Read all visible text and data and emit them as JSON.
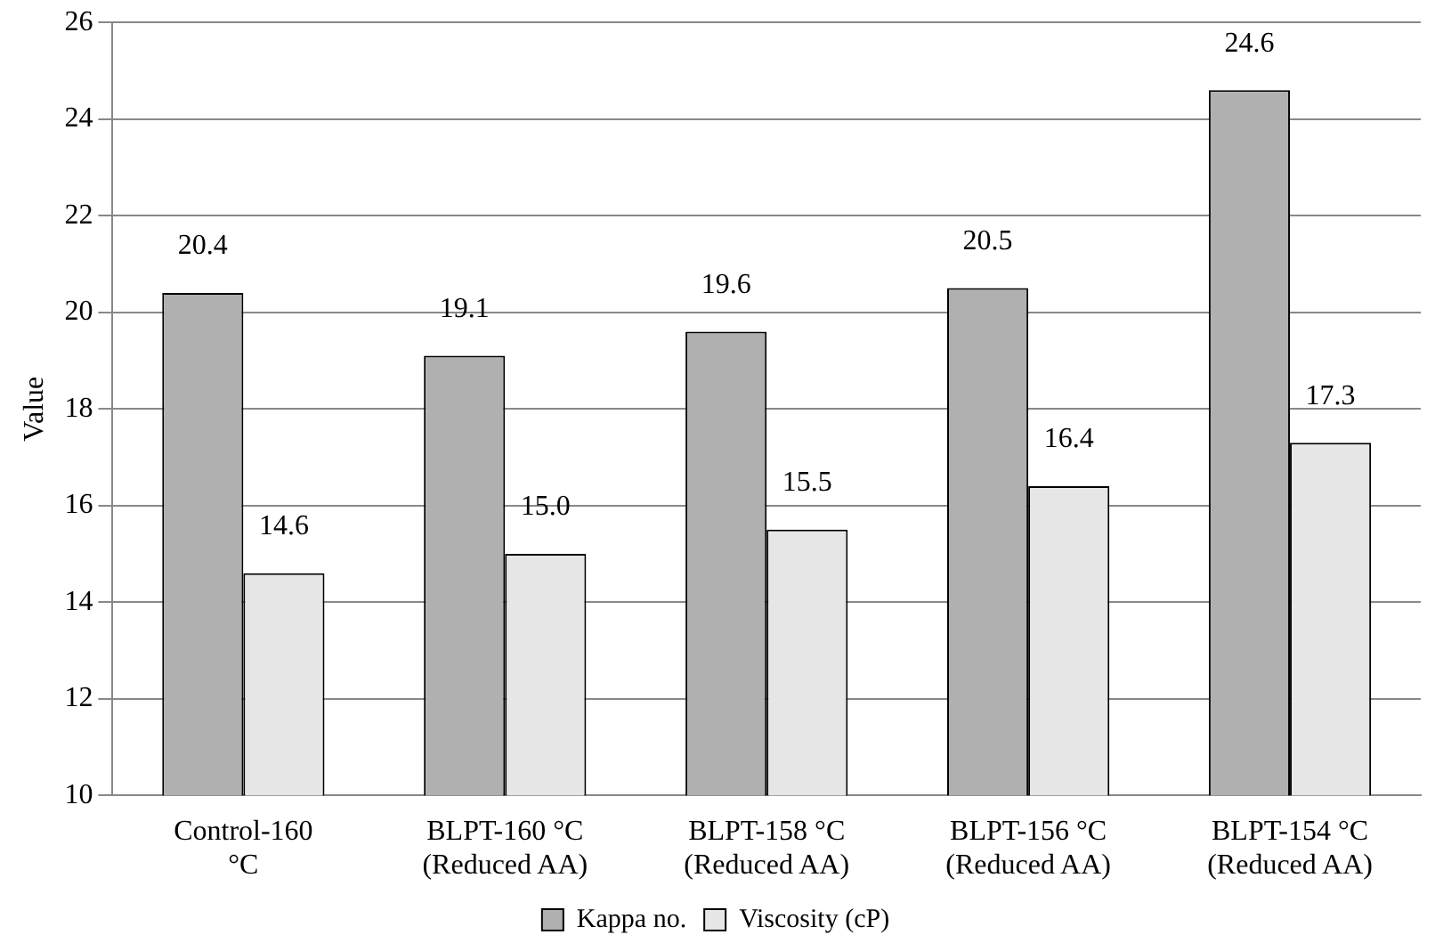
{
  "chart_data": {
    "type": "bar",
    "ylabel": "Value",
    "categories": [
      "Control-160 °C",
      "BLPT-160 °C (Reduced AA)",
      "BLPT-158 °C (Reduced AA)",
      "BLPT-156 °C (Reduced AA)",
      "BLPT-154 °C (Reduced AA)"
    ],
    "series": [
      {
        "name": "Kappa no.",
        "color": "#b0b0b0",
        "values": [
          20.4,
          19.1,
          19.6,
          20.5,
          24.6
        ]
      },
      {
        "name": "Viscosity (cP)",
        "color": "#e6e6e6",
        "values": [
          14.6,
          15.0,
          15.5,
          16.4,
          17.3
        ]
      }
    ],
    "value_labels": [
      [
        "20.4",
        "19.1",
        "19.6",
        "20.5",
        "24.6"
      ],
      [
        "14.6",
        "15.0",
        "15.5",
        "16.4",
        "17.3"
      ]
    ],
    "ylim": [
      10,
      26
    ],
    "yticks": [
      10,
      12,
      14,
      16,
      18,
      20,
      22,
      24,
      26
    ],
    "grid": "y",
    "legend": "bottom"
  }
}
